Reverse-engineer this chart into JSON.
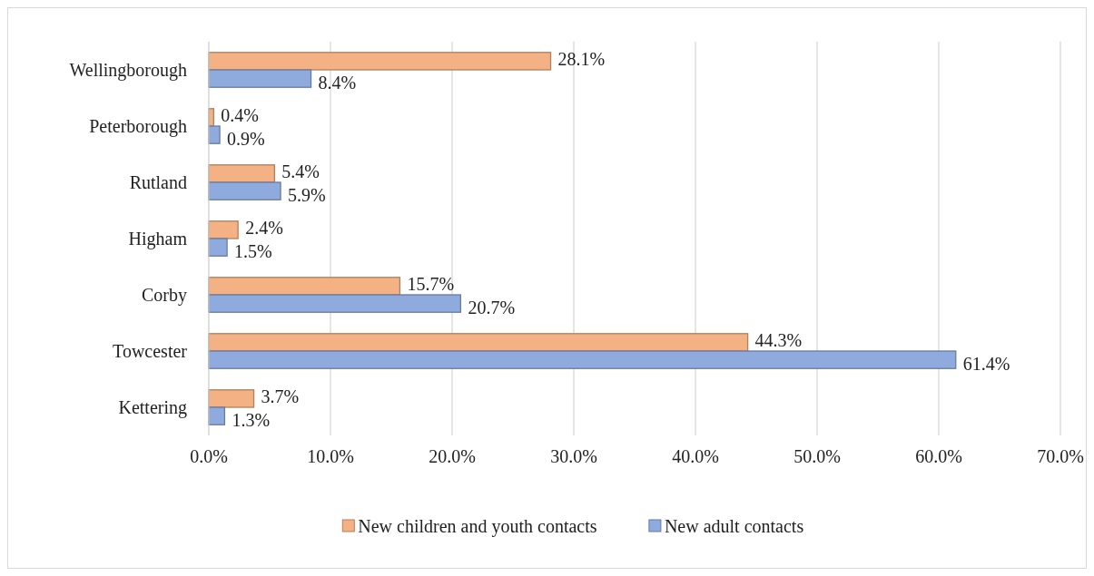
{
  "chart_data": {
    "type": "bar",
    "orientation": "horizontal",
    "categories": [
      "Wellingborough",
      "Peterborough",
      "Rutland",
      "Higham",
      "Corby",
      "Towcester",
      "Kettering"
    ],
    "series": [
      {
        "name": "New children and youth contacts",
        "color": "#f4b183",
        "values": [
          28.1,
          0.4,
          5.4,
          2.4,
          15.7,
          44.3,
          3.7
        ],
        "value_labels": [
          "28.1%",
          "0.4%",
          "5.4%",
          "2.4%",
          "15.7%",
          "44.3%",
          "3.7%"
        ]
      },
      {
        "name": "New adult contacts",
        "color": "#8faadc",
        "values": [
          8.4,
          0.9,
          5.9,
          1.5,
          20.7,
          61.4,
          1.3
        ],
        "value_labels": [
          "8.4%",
          "0.9%",
          "5.9%",
          "1.5%",
          "20.7%",
          "61.4%",
          "1.3%"
        ]
      }
    ],
    "xlim": [
      0,
      70
    ],
    "xticks": [
      {
        "value": 0,
        "label": "0.0%"
      },
      {
        "value": 10,
        "label": "10.0%"
      },
      {
        "value": 20,
        "label": "20.0%"
      },
      {
        "value": 30,
        "label": "30.0%"
      },
      {
        "value": 40,
        "label": "40.0%"
      },
      {
        "value": 50,
        "label": "50.0%"
      },
      {
        "value": 60,
        "label": "60.0%"
      },
      {
        "value": 70,
        "label": "70.0%"
      }
    ],
    "grid": "x",
    "legend": "bottom"
  }
}
